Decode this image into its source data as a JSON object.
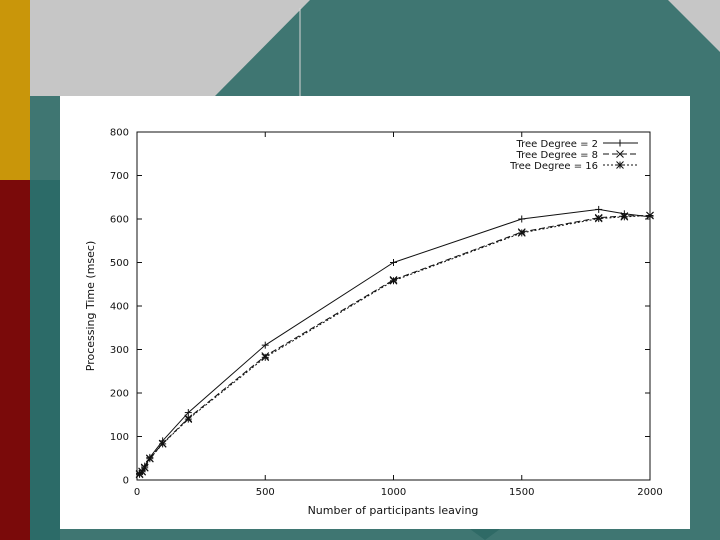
{
  "colors": {
    "background_teal": "#3f7672",
    "background_gray": "#c6c6c6",
    "accent_gold": "#c9960a",
    "accent_red": "#7a0a0a",
    "plot_background": "#ffffff",
    "ink": "#111111"
  },
  "chart_data": {
    "type": "line",
    "xlabel": "Number of participants leaving",
    "ylabel": "Processing Time (msec)",
    "xlim": [
      0,
      2000
    ],
    "ylim": [
      0,
      800
    ],
    "xticks": [
      0,
      500,
      1000,
      1500,
      2000
    ],
    "yticks": [
      0,
      100,
      200,
      300,
      400,
      500,
      600,
      700,
      800
    ],
    "grid": false,
    "legend_position": "top-right",
    "series": [
      {
        "name": "Tree Degree = 2",
        "marker": "+",
        "dash": "solid",
        "x": [
          10,
          20,
          30,
          50,
          100,
          200,
          500,
          1000,
          1500,
          1800,
          1900,
          2000
        ],
        "y": [
          15,
          22,
          32,
          52,
          90,
          155,
          310,
          500,
          600,
          622,
          612,
          605
        ]
      },
      {
        "name": "Tree Degree = 8",
        "marker": "x",
        "dash": "dashed",
        "x": [
          10,
          20,
          30,
          50,
          100,
          200,
          500,
          1000,
          1500,
          1800,
          1900,
          2000
        ],
        "y": [
          14,
          20,
          29,
          50,
          84,
          142,
          285,
          460,
          570,
          603,
          607,
          608
        ]
      },
      {
        "name": "Tree Degree = 16",
        "marker": "*",
        "dash": "dotted",
        "x": [
          10,
          20,
          30,
          50,
          100,
          200,
          500,
          1000,
          1500,
          1800,
          1900,
          2000
        ],
        "y": [
          13,
          19,
          28,
          49,
          83,
          140,
          282,
          458,
          568,
          601,
          605,
          608
        ]
      }
    ]
  }
}
